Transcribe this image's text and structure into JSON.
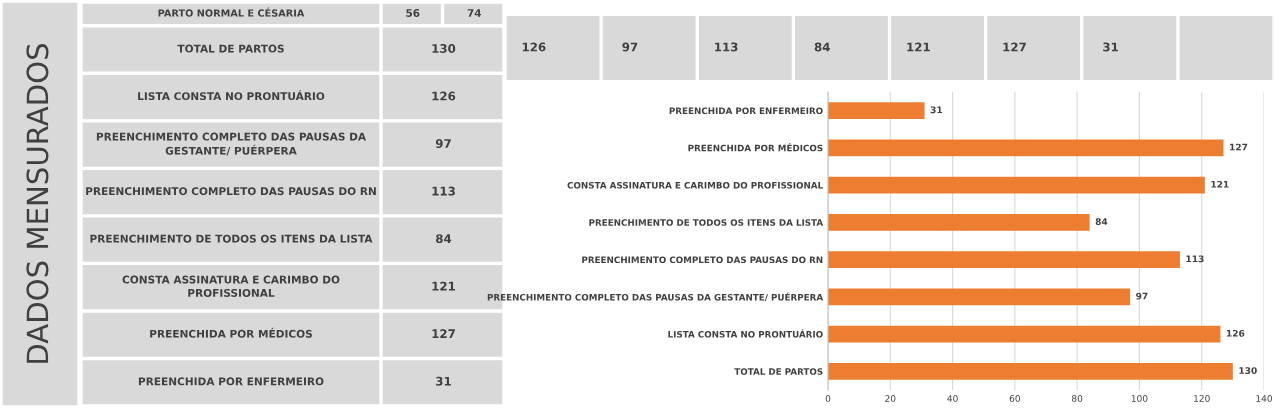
{
  "chart_data": [
    {
      "type": "other",
      "title": "DADOS MENSURADOS",
      "categories": [
        "PARTO NORMAL E CÉSARIA",
        "TOTAL DE PARTOS",
        "LISTA CONSTA NO PRONTUÁRIO",
        "PREENCHIMENTO COMPLETO DAS PAUSAS DA GESTANTE/ PUÉRPERA",
        "PREENCHIMENTO COMPLETO DAS PAUSAS DO RN",
        "PREENCHIMENTO DE TODOS OS ITENS DA LISTA",
        "CONSTA ASSINATURA E CARIMBO DO PROFISSIONAL",
        "PREENCHIDA POR MÉDICOS",
        "PREENCHIDA POR ENFERMEIRO"
      ],
      "series": [
        {
          "values": [
            56,
            130,
            126,
            97,
            113,
            84,
            121,
            127,
            31
          ]
        },
        {
          "values": [
            74,
            null,
            null,
            null,
            null,
            null,
            null,
            null,
            null
          ]
        }
      ],
      "data_labels": true
    },
    {
      "type": "other",
      "categories": [
        null,
        null,
        null,
        null,
        null,
        null,
        null,
        null
      ],
      "values": [
        126,
        97,
        113,
        84,
        121,
        127,
        31,
        null
      ],
      "data_labels": true
    },
    {
      "type": "bar",
      "orientation": "horizontal",
      "categories": [
        "PREENCHIDA POR ENFERMEIRO",
        "PREENCHIDA POR MÉDICOS",
        "CONSTA ASSINATURA E CARIMBO DO PROFISSIONAL",
        "PREENCHIMENTO DE TODOS OS ITENS DA LISTA",
        "PREENCHIMENTO COMPLETO DAS PAUSAS DO RN",
        "PREENCHIMENTO COMPLETO DAS PAUSAS DA GESTANTE/ PUÉRPERA",
        "LISTA CONSTA NO PRONTUÁRIO",
        "TOTAL DE PARTOS"
      ],
      "values": [
        31,
        127,
        121,
        84,
        113,
        97,
        126,
        130
      ],
      "color": "#ed7d31",
      "xlim": [
        0,
        140
      ],
      "xticks": [
        0,
        20,
        40,
        60,
        80,
        100,
        120,
        140
      ],
      "grid": "x",
      "data_labels": true
    }
  ]
}
